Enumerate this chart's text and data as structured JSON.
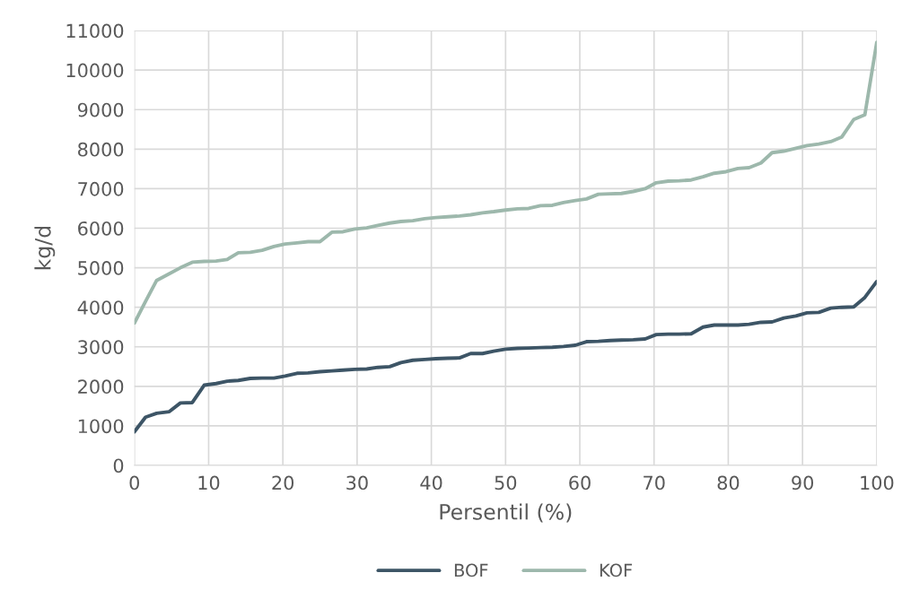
{
  "chart_data": {
    "type": "line",
    "xlabel": "Persentil (%)",
    "ylabel": "kg/d",
    "x": [
      0,
      1.5,
      3,
      4.7,
      6.2,
      7.8,
      9.4,
      11,
      12.5,
      14,
      15.6,
      17.2,
      18.8,
      20.3,
      21.9,
      23.4,
      25,
      26.6,
      28.1,
      29.7,
      31.3,
      32.8,
      34.4,
      35.9,
      37.5,
      39.1,
      40.6,
      42.2,
      43.8,
      45.3,
      46.9,
      48.4,
      50,
      51.6,
      53.1,
      54.7,
      56.3,
      57.8,
      59.4,
      60.9,
      62.5,
      64.1,
      65.6,
      67.2,
      68.8,
      70.3,
      71.9,
      73.4,
      75,
      76.6,
      78.1,
      79.7,
      81.3,
      82.8,
      84.4,
      85.9,
      87.5,
      89.1,
      90.6,
      92.2,
      93.8,
      95.3,
      96.9,
      98.4,
      100
    ],
    "series": [
      {
        "name": "BOF",
        "color": "#3d5566",
        "values": [
          850,
          1220,
          1320,
          1360,
          1580,
          1590,
          2030,
          2070,
          2130,
          2150,
          2200,
          2210,
          2210,
          2260,
          2330,
          2340,
          2370,
          2390,
          2410,
          2430,
          2440,
          2480,
          2500,
          2600,
          2660,
          2680,
          2700,
          2710,
          2720,
          2830,
          2830,
          2890,
          2940,
          2960,
          2970,
          2980,
          2990,
          3010,
          3040,
          3130,
          3140,
          3160,
          3170,
          3180,
          3200,
          3310,
          3320,
          3320,
          3330,
          3500,
          3550,
          3550,
          3550,
          3570,
          3620,
          3630,
          3730,
          3780,
          3860,
          3870,
          3980,
          4000,
          4010,
          4250,
          4650
        ]
      },
      {
        "name": "KOF",
        "color": "#9db8ac",
        "values": [
          3600,
          4150,
          4680,
          4850,
          5000,
          5140,
          5160,
          5170,
          5210,
          5380,
          5390,
          5440,
          5540,
          5600,
          5630,
          5660,
          5660,
          5900,
          5910,
          5980,
          6010,
          6070,
          6130,
          6170,
          6190,
          6240,
          6270,
          6290,
          6310,
          6340,
          6390,
          6420,
          6460,
          6490,
          6500,
          6570,
          6580,
          6650,
          6700,
          6740,
          6860,
          6870,
          6880,
          6930,
          7000,
          7150,
          7190,
          7200,
          7220,
          7300,
          7390,
          7430,
          7510,
          7530,
          7650,
          7910,
          7950,
          8020,
          8090,
          8130,
          8190,
          8310,
          8750,
          8870,
          10700
        ]
      }
    ],
    "xlim": [
      0,
      100
    ],
    "xticks": [
      0,
      10,
      20,
      30,
      40,
      50,
      60,
      70,
      80,
      90,
      100
    ],
    "ylim": [
      0,
      11000
    ],
    "yticks": [
      0,
      1000,
      2000,
      3000,
      4000,
      5000,
      6000,
      7000,
      8000,
      9000,
      10000,
      11000
    ],
    "grid": true,
    "legend": "bottom",
    "marker": "none",
    "line_style": "solid"
  }
}
